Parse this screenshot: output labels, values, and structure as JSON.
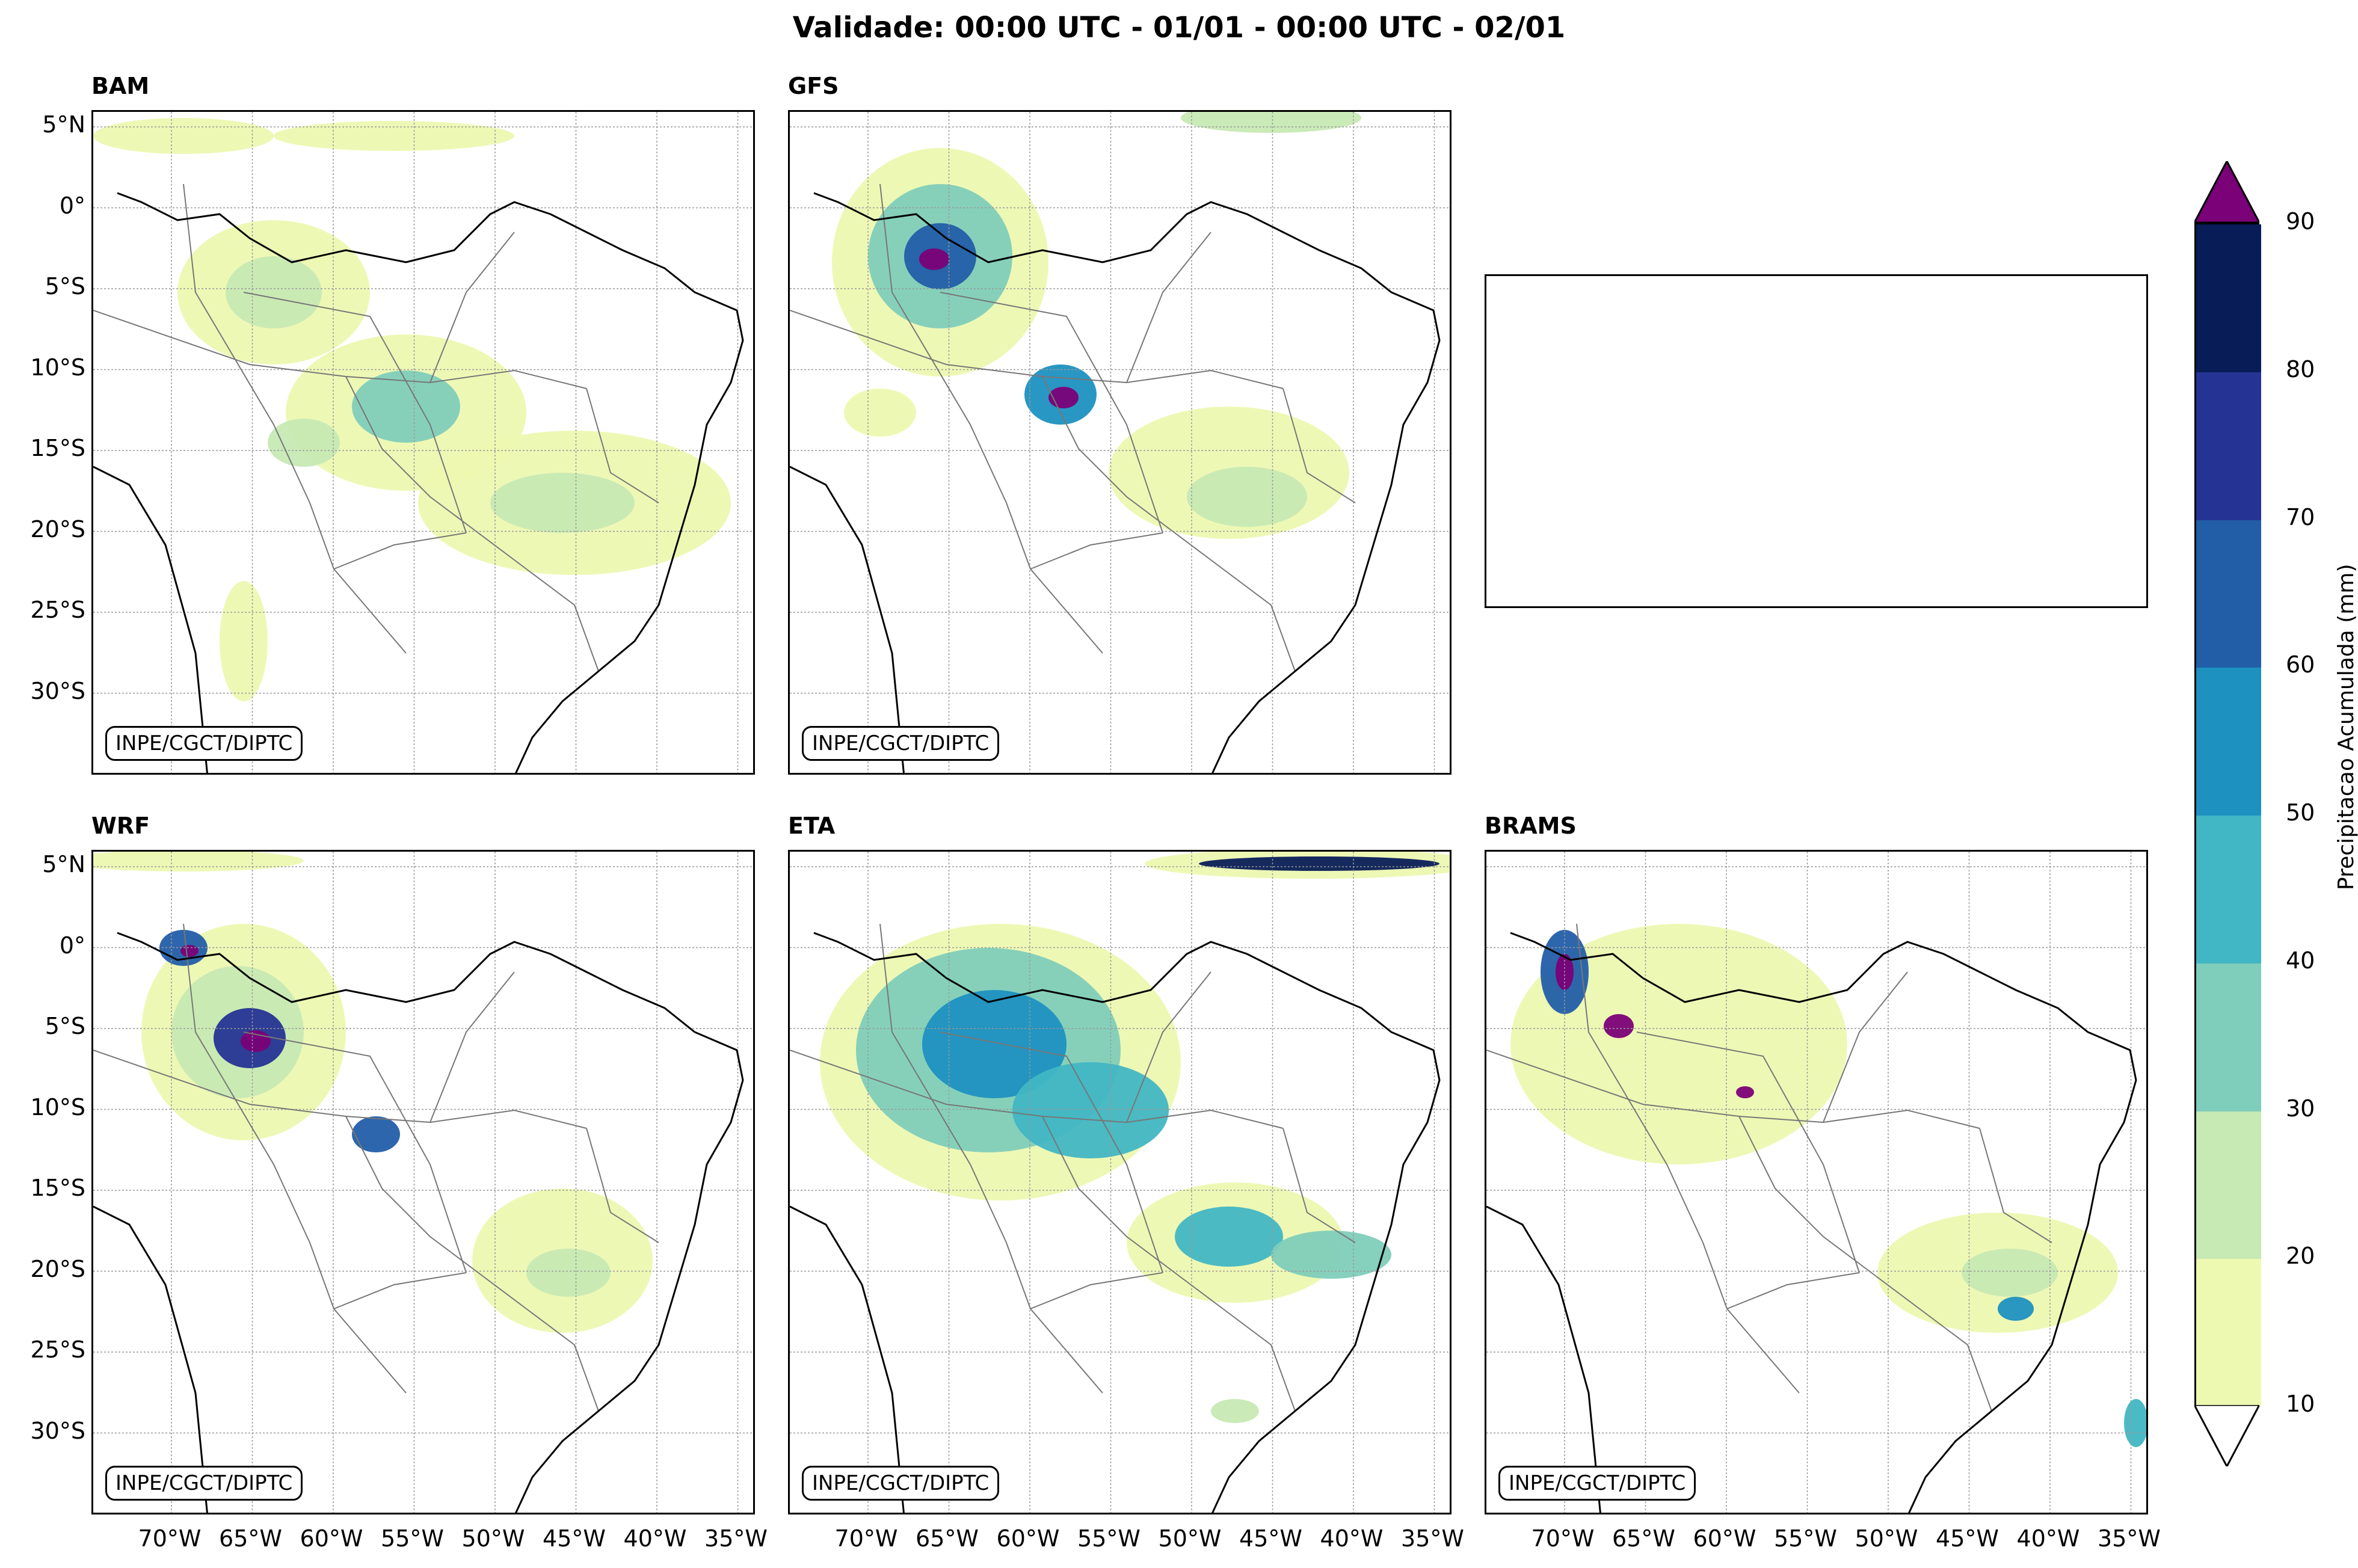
{
  "figure": {
    "title": "Validade: 00:00 UTC - 01/01 - 00:00 UTC - 02/01",
    "credit": "INPE/CGCT/DIPTC"
  },
  "panels": [
    {
      "id": "bam",
      "label": "BAM",
      "has_map": true
    },
    {
      "id": "gfs",
      "label": "GFS",
      "has_map": true
    },
    {
      "id": "empty",
      "label": "",
      "has_map": false
    },
    {
      "id": "wrf",
      "label": "WRF",
      "has_map": true
    },
    {
      "id": "eta",
      "label": "ETA",
      "has_map": true
    },
    {
      "id": "brams",
      "label": "BRAMS",
      "has_map": true
    }
  ],
  "axes": {
    "lat_ticks": [
      "5°N",
      "0°",
      "5°S",
      "10°S",
      "15°S",
      "20°S",
      "25°S",
      "30°S"
    ],
    "lon_ticks": [
      "70°W",
      "65°W",
      "60°W",
      "55°W",
      "50°W",
      "45°W",
      "40°W",
      "35°W"
    ]
  },
  "colorbar": {
    "label": "Precipitacao Acumulada (mm)",
    "ticks": [
      "10",
      "20",
      "30",
      "40",
      "50",
      "60",
      "70",
      "80",
      "90"
    ],
    "colors": [
      "#edf8b1",
      "#c7e9b4",
      "#7fcdbb",
      "#41b6c4",
      "#1d91c0",
      "#225ea8",
      "#253494",
      "#081d58"
    ],
    "over_color": "#7a0177",
    "under_color": "#ffffff"
  }
}
